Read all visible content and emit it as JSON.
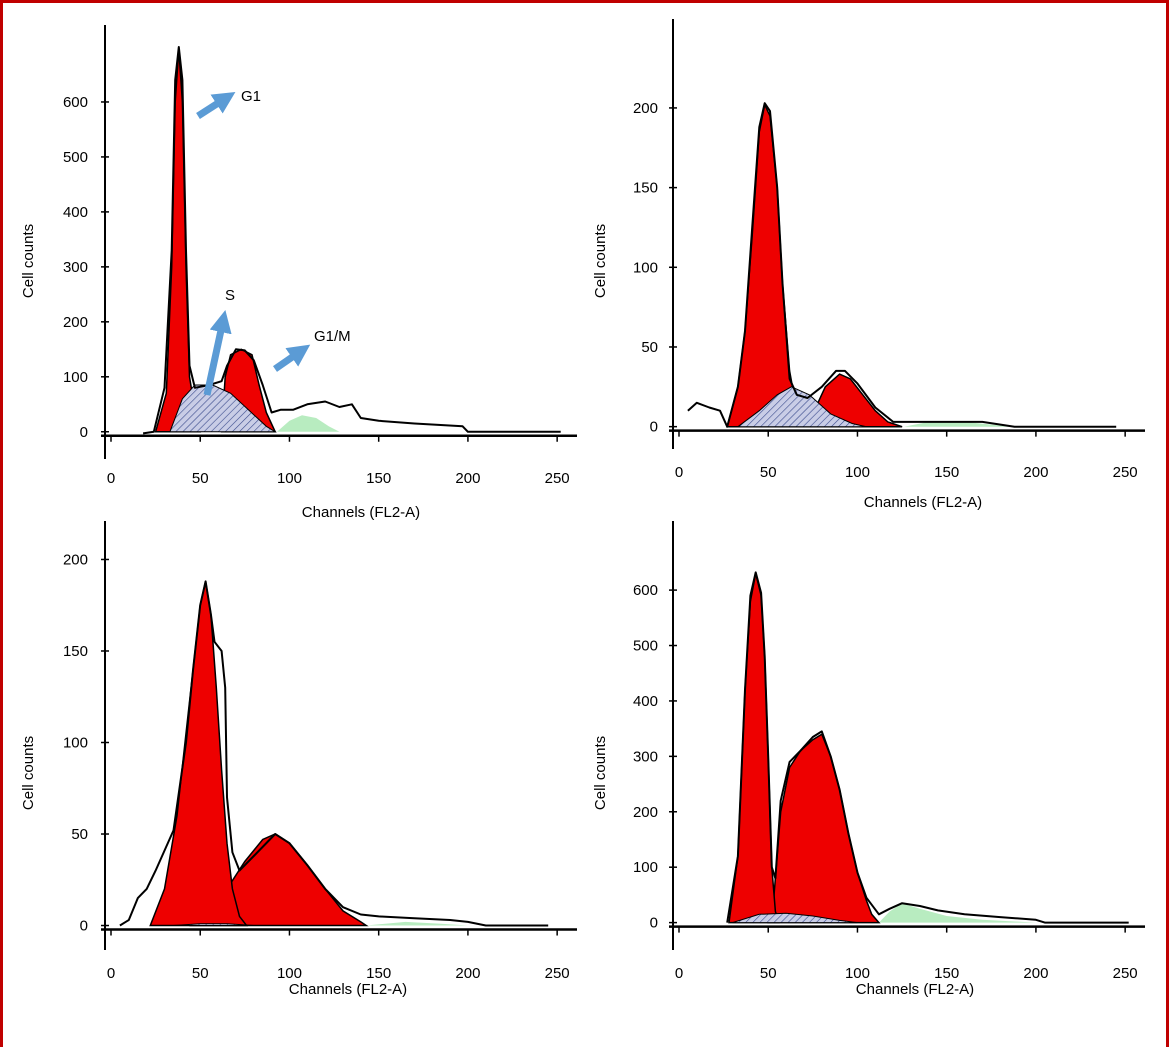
{
  "colors": {
    "border": "#c00000",
    "g1_fill": "#ee0000",
    "g2m_fill": "#ee0000",
    "s_fill": "#c9cde6",
    "s_hatch": "#3a4a8c",
    "tail_fill": "#b8ecc0",
    "arrow": "#5b9bd5",
    "outline": "#000000"
  },
  "chart_data": [
    {
      "id": "panel-a",
      "type": "area",
      "xlabel": "Channels (FL2-A)",
      "ylabel": "Cell counts",
      "x_ticks": [
        0,
        50,
        100,
        150,
        200,
        250
      ],
      "y_ticks": [
        0,
        100,
        200,
        300,
        400,
        500,
        600
      ],
      "xlim": [
        0,
        260
      ],
      "ylim": [
        -35,
        700
      ],
      "annotations": [
        "G1",
        "S",
        "G1/M"
      ],
      "components": {
        "g1": [
          [
            25,
            0
          ],
          [
            31,
            70
          ],
          [
            34,
            300
          ],
          [
            36,
            600
          ],
          [
            38,
            695
          ],
          [
            40,
            600
          ],
          [
            42,
            300
          ],
          [
            44,
            100
          ],
          [
            47,
            40
          ],
          [
            50,
            0
          ]
        ],
        "s": [
          [
            33,
            0
          ],
          [
            40,
            60
          ],
          [
            47,
            85
          ],
          [
            57,
            85
          ],
          [
            67,
            70
          ],
          [
            77,
            40
          ],
          [
            87,
            10
          ],
          [
            92,
            0
          ]
        ],
        "g2m": [
          [
            62,
            0
          ],
          [
            64,
            100
          ],
          [
            67,
            140
          ],
          [
            73,
            150
          ],
          [
            79,
            140
          ],
          [
            83,
            85
          ],
          [
            87,
            35
          ],
          [
            92,
            0
          ]
        ],
        "tail": [
          [
            93,
            0
          ],
          [
            100,
            20
          ],
          [
            107,
            30
          ],
          [
            115,
            25
          ],
          [
            122,
            10
          ],
          [
            128,
            0
          ]
        ],
        "envelope": [
          [
            18,
            -3
          ],
          [
            24,
            0
          ],
          [
            30,
            80
          ],
          [
            34,
            330
          ],
          [
            36,
            640
          ],
          [
            38,
            700
          ],
          [
            40,
            640
          ],
          [
            42,
            330
          ],
          [
            44,
            120
          ],
          [
            47,
            80
          ],
          [
            55,
            85
          ],
          [
            62,
            92
          ],
          [
            65,
            120
          ],
          [
            70,
            150
          ],
          [
            75,
            148
          ],
          [
            80,
            130
          ],
          [
            85,
            85
          ],
          [
            90,
            35
          ],
          [
            95,
            40
          ],
          [
            102,
            40
          ],
          [
            110,
            50
          ],
          [
            120,
            55
          ],
          [
            128,
            45
          ],
          [
            135,
            50
          ],
          [
            140,
            25
          ],
          [
            150,
            20
          ],
          [
            170,
            15
          ],
          [
            197,
            10
          ],
          [
            200,
            0
          ],
          [
            240,
            0
          ],
          [
            252,
            0
          ]
        ]
      }
    },
    {
      "id": "panel-b",
      "type": "area",
      "xlabel": "Channels (FL2-A)",
      "ylabel": "Cell counts",
      "x_ticks": [
        0,
        50,
        100,
        150,
        200,
        250
      ],
      "y_ticks": [
        0,
        50,
        100,
        150,
        200
      ],
      "xlim": [
        0,
        260
      ],
      "ylim": [
        -9,
        242
      ],
      "components": {
        "g1": [
          [
            27,
            0
          ],
          [
            33,
            25
          ],
          [
            37,
            60
          ],
          [
            41,
            120
          ],
          [
            45,
            185
          ],
          [
            48,
            202
          ],
          [
            51,
            195
          ],
          [
            55,
            150
          ],
          [
            58,
            90
          ],
          [
            62,
            35
          ],
          [
            66,
            10
          ],
          [
            70,
            0
          ]
        ],
        "s": [
          [
            33,
            0
          ],
          [
            45,
            10
          ],
          [
            55,
            20
          ],
          [
            63,
            25
          ],
          [
            73,
            20
          ],
          [
            85,
            8
          ],
          [
            97,
            2
          ],
          [
            105,
            0
          ]
        ],
        "g2m": [
          [
            70,
            0
          ],
          [
            75,
            8
          ],
          [
            82,
            25
          ],
          [
            90,
            33
          ],
          [
            96,
            30
          ],
          [
            103,
            20
          ],
          [
            110,
            10
          ],
          [
            117,
            3
          ],
          [
            125,
            0
          ]
        ],
        "tail": [
          [
            126,
            0
          ],
          [
            140,
            3
          ],
          [
            160,
            3
          ],
          [
            178,
            1
          ],
          [
            188,
            0
          ]
        ],
        "envelope": [
          [
            5,
            10
          ],
          [
            10,
            15
          ],
          [
            17,
            12
          ],
          [
            23,
            10
          ],
          [
            27,
            0
          ],
          [
            33,
            25
          ],
          [
            37,
            60
          ],
          [
            41,
            125
          ],
          [
            45,
            188
          ],
          [
            48,
            203
          ],
          [
            51,
            198
          ],
          [
            55,
            150
          ],
          [
            58,
            90
          ],
          [
            62,
            30
          ],
          [
            66,
            20
          ],
          [
            72,
            18
          ],
          [
            80,
            25
          ],
          [
            88,
            35
          ],
          [
            93,
            35
          ],
          [
            100,
            27
          ],
          [
            110,
            12
          ],
          [
            120,
            3
          ],
          [
            130,
            3
          ],
          [
            150,
            3
          ],
          [
            170,
            3
          ],
          [
            188,
            0
          ],
          [
            245,
            0
          ]
        ]
      }
    },
    {
      "id": "panel-c",
      "type": "area",
      "xlabel": "Channels (FL2-A)",
      "ylabel": "Cell counts",
      "x_ticks": [
        0,
        50,
        100,
        150,
        200,
        250
      ],
      "y_ticks": [
        0,
        50,
        100,
        150,
        200
      ],
      "xlim": [
        0,
        260
      ],
      "ylim": [
        -9,
        209
      ],
      "components": {
        "g1": [
          [
            22,
            0
          ],
          [
            30,
            20
          ],
          [
            37,
            60
          ],
          [
            42,
            105
          ],
          [
            46,
            140
          ],
          [
            50,
            175
          ],
          [
            53,
            188
          ],
          [
            56,
            170
          ],
          [
            59,
            130
          ],
          [
            62,
            85
          ],
          [
            65,
            45
          ],
          [
            68,
            20
          ],
          [
            72,
            5
          ],
          [
            76,
            0
          ]
        ],
        "s": [
          [
            35,
            0
          ],
          [
            50,
            1
          ],
          [
            65,
            1
          ],
          [
            80,
            0
          ]
        ],
        "g2m": [
          [
            45,
            0
          ],
          [
            55,
            8
          ],
          [
            65,
            20
          ],
          [
            75,
            35
          ],
          [
            85,
            47
          ],
          [
            92,
            50
          ],
          [
            100,
            45
          ],
          [
            110,
            33
          ],
          [
            120,
            20
          ],
          [
            130,
            8
          ],
          [
            140,
            2
          ],
          [
            143,
            0
          ]
        ],
        "tail": [
          [
            143,
            0
          ],
          [
            165,
            2
          ],
          [
            185,
            1
          ],
          [
            200,
            0
          ]
        ],
        "envelope": [
          [
            5,
            0
          ],
          [
            10,
            3
          ],
          [
            15,
            15
          ],
          [
            20,
            20
          ],
          [
            25,
            30
          ],
          [
            35,
            52
          ],
          [
            42,
            100
          ],
          [
            46,
            140
          ],
          [
            50,
            175
          ],
          [
            53,
            188
          ],
          [
            56,
            170
          ],
          [
            58,
            155
          ],
          [
            62,
            150
          ],
          [
            64,
            130
          ],
          [
            65,
            70
          ],
          [
            68,
            40
          ],
          [
            72,
            30
          ],
          [
            80,
            38
          ],
          [
            92,
            50
          ],
          [
            100,
            45
          ],
          [
            110,
            33
          ],
          [
            120,
            20
          ],
          [
            130,
            10
          ],
          [
            140,
            6
          ],
          [
            150,
            5
          ],
          [
            170,
            4
          ],
          [
            190,
            3
          ],
          [
            200,
            2
          ],
          [
            210,
            0
          ],
          [
            245,
            0
          ]
        ]
      }
    },
    {
      "id": "panel-d",
      "type": "area",
      "xlabel": "Channels (FL2-A)",
      "ylabel": "Cell counts",
      "x_ticks": [
        0,
        50,
        100,
        150,
        200,
        250
      ],
      "y_ticks": [
        0,
        100,
        200,
        300,
        400,
        500,
        600
      ],
      "xlim": [
        0,
        260
      ],
      "ylim": [
        -35,
        685
      ],
      "components": {
        "g1": [
          [
            28,
            0
          ],
          [
            33,
            120
          ],
          [
            37,
            420
          ],
          [
            40,
            580
          ],
          [
            43,
            630
          ],
          [
            46,
            590
          ],
          [
            48,
            480
          ],
          [
            50,
            300
          ],
          [
            52,
            100
          ],
          [
            54,
            20
          ],
          [
            56,
            0
          ]
        ],
        "s": [
          [
            30,
            0
          ],
          [
            45,
            15
          ],
          [
            60,
            17
          ],
          [
            75,
            12
          ],
          [
            90,
            4
          ],
          [
            100,
            0
          ]
        ],
        "g2m": [
          [
            50,
            0
          ],
          [
            53,
            40
          ],
          [
            57,
            200
          ],
          [
            62,
            280
          ],
          [
            68,
            310
          ],
          [
            75,
            330
          ],
          [
            80,
            340
          ],
          [
            85,
            300
          ],
          [
            90,
            240
          ],
          [
            95,
            160
          ],
          [
            100,
            90
          ],
          [
            105,
            40
          ],
          [
            108,
            15
          ],
          [
            112,
            0
          ]
        ],
        "tail": [
          [
            112,
            0
          ],
          [
            118,
            20
          ],
          [
            125,
            35
          ],
          [
            135,
            25
          ],
          [
            150,
            12
          ],
          [
            170,
            5
          ],
          [
            200,
            0
          ]
        ],
        "envelope": [
          [
            27,
            0
          ],
          [
            33,
            120
          ],
          [
            37,
            420
          ],
          [
            40,
            590
          ],
          [
            43,
            632
          ],
          [
            46,
            595
          ],
          [
            48,
            480
          ],
          [
            50,
            300
          ],
          [
            52,
            100
          ],
          [
            54,
            80
          ],
          [
            57,
            220
          ],
          [
            62,
            290
          ],
          [
            68,
            310
          ],
          [
            75,
            335
          ],
          [
            80,
            345
          ],
          [
            85,
            300
          ],
          [
            90,
            240
          ],
          [
            95,
            160
          ],
          [
            100,
            90
          ],
          [
            105,
            45
          ],
          [
            112,
            15
          ],
          [
            118,
            25
          ],
          [
            125,
            35
          ],
          [
            135,
            30
          ],
          [
            145,
            22
          ],
          [
            160,
            15
          ],
          [
            180,
            10
          ],
          [
            200,
            5
          ],
          [
            205,
            0
          ],
          [
            252,
            0
          ]
        ]
      }
    }
  ]
}
